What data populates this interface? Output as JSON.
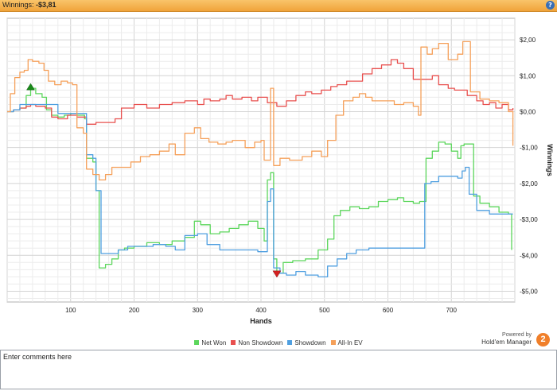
{
  "header": {
    "label": "Winnings:",
    "value": "-$3,81",
    "help_glyph": "?"
  },
  "comments": {
    "placeholder": "Enter comments here"
  },
  "branding": {
    "powered_by": "Powered by",
    "product": "Hold'em Manager",
    "logo_text": "2"
  },
  "colors": {
    "net_won": "#5cd65c",
    "non_showdown": "#e8504f",
    "showdown": "#4f9fe0",
    "all_in_ev": "#f5a05a",
    "header_bg": "#f5b04a"
  },
  "chart_data": {
    "type": "line",
    "xlabel": "Hands",
    "ylabel": "Winnings",
    "x_ticks": [
      100,
      200,
      300,
      400,
      500,
      600,
      700
    ],
    "y_ticks": [
      2,
      1,
      0,
      -1,
      -2,
      -3,
      -4,
      -5
    ],
    "y_tick_labels": [
      "$2,00",
      "$1,00",
      "$0,00",
      "-$1,00",
      "-$2,00",
      "-$3,00",
      "-$4,00",
      "-$5,00"
    ],
    "xlim": [
      0,
      800
    ],
    "ylim": [
      -5.3,
      2.6
    ],
    "grid": true,
    "legend_position": "bottom",
    "markers": [
      {
        "type": "max",
        "series": "Net Won",
        "x": 37,
        "y": 0.65
      },
      {
        "type": "min",
        "series": "Net Won",
        "x": 425,
        "y": -4.5
      }
    ],
    "series": [
      {
        "name": "Net Won",
        "color": "#5cd65c",
        "points": [
          [
            0,
            0
          ],
          [
            10,
            0.05
          ],
          [
            20,
            0.1
          ],
          [
            30,
            0.45
          ],
          [
            37,
            0.65
          ],
          [
            45,
            0.5
          ],
          [
            55,
            0.4
          ],
          [
            62,
            0.05
          ],
          [
            70,
            -0.1
          ],
          [
            80,
            -0.15
          ],
          [
            90,
            -0.1
          ],
          [
            100,
            -0.05
          ],
          [
            110,
            -0.1
          ],
          [
            122,
            -0.2
          ],
          [
            125,
            -1.3
          ],
          [
            135,
            -1.4
          ],
          [
            140,
            -2.2
          ],
          [
            145,
            -4.35
          ],
          [
            155,
            -4.25
          ],
          [
            165,
            -4.1
          ],
          [
            175,
            -3.85
          ],
          [
            185,
            -3.8
          ],
          [
            200,
            -3.75
          ],
          [
            220,
            -3.65
          ],
          [
            240,
            -3.7
          ],
          [
            260,
            -3.6
          ],
          [
            280,
            -3.5
          ],
          [
            295,
            -3.05
          ],
          [
            305,
            -3.15
          ],
          [
            320,
            -3.4
          ],
          [
            335,
            -3.35
          ],
          [
            350,
            -3.25
          ],
          [
            365,
            -3.15
          ],
          [
            380,
            -3.05
          ],
          [
            395,
            -3.25
          ],
          [
            405,
            -3.6
          ],
          [
            410,
            -1.9
          ],
          [
            415,
            -1.7
          ],
          [
            420,
            -4.1
          ],
          [
            425,
            -4.5
          ],
          [
            435,
            -4.2
          ],
          [
            450,
            -4.15
          ],
          [
            470,
            -4.1
          ],
          [
            490,
            -3.85
          ],
          [
            505,
            -3.55
          ],
          [
            515,
            -2.9
          ],
          [
            525,
            -2.75
          ],
          [
            540,
            -2.65
          ],
          [
            555,
            -2.7
          ],
          [
            570,
            -2.65
          ],
          [
            585,
            -2.5
          ],
          [
            600,
            -2.45
          ],
          [
            615,
            -2.4
          ],
          [
            625,
            -2.5
          ],
          [
            640,
            -2.55
          ],
          [
            650,
            -2.5
          ],
          [
            660,
            -1.3
          ],
          [
            670,
            -1.1
          ],
          [
            680,
            -0.85
          ],
          [
            690,
            -0.9
          ],
          [
            700,
            -1.1
          ],
          [
            710,
            -1.3
          ],
          [
            715,
            -0.95
          ],
          [
            720,
            -0.9
          ],
          [
            735,
            -2.35
          ],
          [
            745,
            -2.55
          ],
          [
            760,
            -2.65
          ],
          [
            775,
            -2.8
          ],
          [
            790,
            -2.85
          ],
          [
            795,
            -3.85
          ]
        ]
      },
      {
        "name": "Non Showdown",
        "color": "#e8504f",
        "points": [
          [
            0,
            0
          ],
          [
            10,
            0.05
          ],
          [
            20,
            0.1
          ],
          [
            30,
            0.15
          ],
          [
            37,
            0.2
          ],
          [
            45,
            0.15
          ],
          [
            60,
            0.1
          ],
          [
            70,
            -0.15
          ],
          [
            80,
            -0.2
          ],
          [
            95,
            -0.1
          ],
          [
            110,
            -0.15
          ],
          [
            125,
            -0.35
          ],
          [
            140,
            -0.3
          ],
          [
            155,
            -0.3
          ],
          [
            170,
            -0.2
          ],
          [
            180,
            0.1
          ],
          [
            190,
            0.1
          ],
          [
            200,
            0.2
          ],
          [
            220,
            0.1
          ],
          [
            240,
            0.2
          ],
          [
            260,
            0.25
          ],
          [
            280,
            0.3
          ],
          [
            300,
            0.2
          ],
          [
            310,
            0.35
          ],
          [
            320,
            0.3
          ],
          [
            335,
            0.35
          ],
          [
            345,
            0.45
          ],
          [
            355,
            0.35
          ],
          [
            370,
            0.4
          ],
          [
            385,
            0.3
          ],
          [
            395,
            0.4
          ],
          [
            410,
            0.25
          ],
          [
            425,
            0.15
          ],
          [
            440,
            0.3
          ],
          [
            455,
            0.45
          ],
          [
            470,
            0.55
          ],
          [
            480,
            0.5
          ],
          [
            495,
            0.6
          ],
          [
            510,
            0.7
          ],
          [
            520,
            0.75
          ],
          [
            535,
            0.85
          ],
          [
            550,
            0.85
          ],
          [
            560,
            1.05
          ],
          [
            575,
            1.2
          ],
          [
            590,
            1.3
          ],
          [
            605,
            1.45
          ],
          [
            615,
            1.35
          ],
          [
            625,
            1.2
          ],
          [
            640,
            0.9
          ],
          [
            650,
            0.9
          ],
          [
            660,
            0.9
          ],
          [
            670,
            1.0
          ],
          [
            680,
            0.75
          ],
          [
            695,
            0.65
          ],
          [
            705,
            0.6
          ],
          [
            715,
            0.6
          ],
          [
            725,
            0.45
          ],
          [
            740,
            0.3
          ],
          [
            750,
            0.2
          ],
          [
            760,
            0.25
          ],
          [
            770,
            0.1
          ],
          [
            780,
            0.2
          ],
          [
            790,
            0.05
          ],
          [
            797,
            0.1
          ]
        ]
      },
      {
        "name": "Showdown",
        "color": "#4f9fe0",
        "points": [
          [
            0,
            0
          ],
          [
            10,
            0.05
          ],
          [
            20,
            0.2
          ],
          [
            30,
            0.2
          ],
          [
            45,
            0.2
          ],
          [
            60,
            0.2
          ],
          [
            70,
            0.2
          ],
          [
            80,
            -0.05
          ],
          [
            100,
            -0.05
          ],
          [
            120,
            -0.05
          ],
          [
            125,
            -1.2
          ],
          [
            135,
            -1.3
          ],
          [
            140,
            -2.2
          ],
          [
            148,
            -3.95
          ],
          [
            160,
            -3.95
          ],
          [
            175,
            -3.85
          ],
          [
            190,
            -3.75
          ],
          [
            210,
            -3.75
          ],
          [
            230,
            -3.7
          ],
          [
            250,
            -3.75
          ],
          [
            265,
            -3.85
          ],
          [
            280,
            -3.45
          ],
          [
            300,
            -3.4
          ],
          [
            315,
            -3.7
          ],
          [
            335,
            -3.85
          ],
          [
            355,
            -3.85
          ],
          [
            375,
            -3.85
          ],
          [
            395,
            -3.9
          ],
          [
            405,
            -3.9
          ],
          [
            410,
            -2.5
          ],
          [
            415,
            -2.15
          ],
          [
            420,
            -4.35
          ],
          [
            430,
            -4.5
          ],
          [
            440,
            -4.55
          ],
          [
            455,
            -4.45
          ],
          [
            470,
            -4.55
          ],
          [
            490,
            -4.6
          ],
          [
            505,
            -4.3
          ],
          [
            520,
            -4.1
          ],
          [
            535,
            -3.95
          ],
          [
            550,
            -3.85
          ],
          [
            570,
            -3.8
          ],
          [
            600,
            -3.8
          ],
          [
            630,
            -3.8
          ],
          [
            652,
            -3.8
          ],
          [
            658,
            -2.0
          ],
          [
            668,
            -1.95
          ],
          [
            680,
            -1.8
          ],
          [
            700,
            -1.8
          ],
          [
            710,
            -1.85
          ],
          [
            717,
            -1.65
          ],
          [
            722,
            -1.55
          ],
          [
            728,
            -2.3
          ],
          [
            740,
            -2.75
          ],
          [
            760,
            -2.85
          ],
          [
            780,
            -2.85
          ],
          [
            797,
            -2.85
          ]
        ]
      },
      {
        "name": "All-In EV",
        "color": "#f5a05a",
        "points": [
          [
            0,
            0
          ],
          [
            5,
            0.5
          ],
          [
            12,
            0.95
          ],
          [
            20,
            1.1
          ],
          [
            27,
            1.15
          ],
          [
            33,
            1.45
          ],
          [
            40,
            1.4
          ],
          [
            50,
            1.35
          ],
          [
            58,
            1.15
          ],
          [
            65,
            0.85
          ],
          [
            75,
            0.75
          ],
          [
            85,
            0.85
          ],
          [
            95,
            0.8
          ],
          [
            103,
            0.75
          ],
          [
            110,
            -0.45
          ],
          [
            120,
            -0.6
          ],
          [
            125,
            -1.6
          ],
          [
            135,
            -1.75
          ],
          [
            145,
            -1.9
          ],
          [
            155,
            -1.75
          ],
          [
            165,
            -1.55
          ],
          [
            180,
            -1.55
          ],
          [
            195,
            -1.4
          ],
          [
            210,
            -1.25
          ],
          [
            225,
            -1.2
          ],
          [
            240,
            -1.1
          ],
          [
            255,
            -0.9
          ],
          [
            265,
            -1.2
          ],
          [
            280,
            -0.6
          ],
          [
            295,
            -0.45
          ],
          [
            305,
            -0.75
          ],
          [
            318,
            -0.85
          ],
          [
            332,
            -0.9
          ],
          [
            345,
            -0.85
          ],
          [
            355,
            -0.8
          ],
          [
            375,
            -1.0
          ],
          [
            390,
            -0.85
          ],
          [
            400,
            -0.8
          ],
          [
            405,
            -1.35
          ],
          [
            415,
            0.65
          ],
          [
            420,
            -1.5
          ],
          [
            430,
            -1.3
          ],
          [
            445,
            -1.35
          ],
          [
            465,
            -1.25
          ],
          [
            480,
            -1.1
          ],
          [
            495,
            -1.25
          ],
          [
            505,
            -0.8
          ],
          [
            518,
            -0.1
          ],
          [
            530,
            0.3
          ],
          [
            545,
            0.4
          ],
          [
            555,
            0.5
          ],
          [
            565,
            0.4
          ],
          [
            575,
            0.3
          ],
          [
            590,
            0.3
          ],
          [
            610,
            0.2
          ],
          [
            625,
            0.25
          ],
          [
            640,
            0.15
          ],
          [
            648,
            -0.1
          ],
          [
            652,
            1.8
          ],
          [
            662,
            1.6
          ],
          [
            670,
            1.75
          ],
          [
            680,
            1.9
          ],
          [
            695,
            1.45
          ],
          [
            710,
            1.6
          ],
          [
            718,
            1.95
          ],
          [
            725,
            1.95
          ],
          [
            730,
            0.55
          ],
          [
            745,
            0.35
          ],
          [
            760,
            0.3
          ],
          [
            775,
            0.25
          ],
          [
            790,
            0.0
          ],
          [
            797,
            -0.95
          ]
        ]
      }
    ]
  }
}
